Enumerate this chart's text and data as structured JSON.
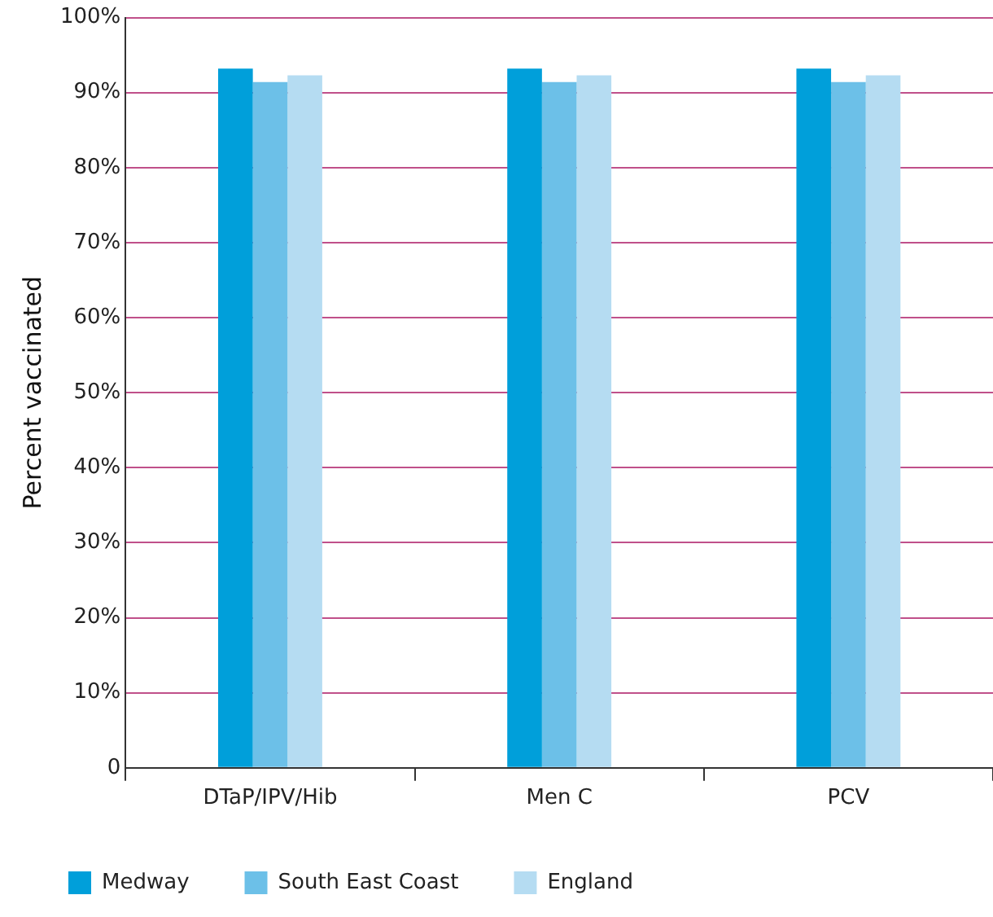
{
  "chart_data": {
    "type": "bar",
    "ylabel": "Percent vaccinated",
    "categories": [
      "DTaP/IPV/Hib",
      "Men C",
      "PCV"
    ],
    "series": [
      {
        "name": "Medway",
        "color": "#009fda",
        "values": [
          93.2,
          93.2,
          93.2
        ]
      },
      {
        "name": "South East Coast",
        "color": "#6cc0e8",
        "values": [
          91.4,
          91.4,
          91.4
        ]
      },
      {
        "name": "England",
        "color": "#b5dcf2",
        "values": [
          92.3,
          92.3,
          92.3
        ]
      }
    ],
    "ylim": [
      0,
      100
    ],
    "yticks": [
      0,
      {
        "value": 10,
        "label": "10%"
      },
      {
        "value": 20,
        "label": "20%"
      },
      {
        "value": 30,
        "label": "30%"
      },
      {
        "value": 40,
        "label": "40%"
      },
      {
        "value": 50,
        "label": "50%"
      },
      {
        "value": 60,
        "label": "60%"
      },
      {
        "value": 70,
        "label": "70%"
      },
      {
        "value": 80,
        "label": "80%"
      },
      {
        "value": 90,
        "label": "90%"
      },
      {
        "value": 100,
        "label": "100%"
      }
    ],
    "grid": "y",
    "legend": "bottom left"
  }
}
